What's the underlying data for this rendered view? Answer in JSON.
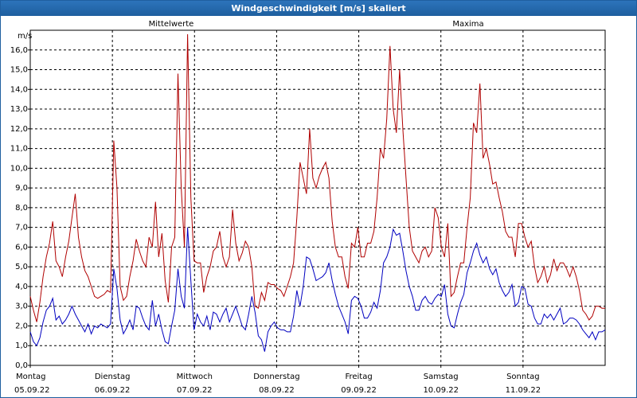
{
  "window": {
    "title": "Windgeschwindigkeit [m/s] skaliert"
  },
  "chart_data": {
    "type": "line",
    "title": "Windgeschwindigkeit [m/s] skaliert",
    "ylabel": "m/s",
    "ylim": [
      0,
      17
    ],
    "xlim": [
      0,
      7
    ],
    "yticks": [
      "0,0",
      "1,0",
      "2,0",
      "3,0",
      "4,0",
      "5,0",
      "6,0",
      "7,0",
      "8,0",
      "9,0",
      "10,0",
      "11,0",
      "12,0",
      "13,0",
      "14,0",
      "15,0",
      "16,0"
    ],
    "xticks": [
      {
        "day": "Montag",
        "date": "05.09.22"
      },
      {
        "day": "Dienstag",
        "date": "06.09.22"
      },
      {
        "day": "Mittwoch",
        "date": "07.09.22"
      },
      {
        "day": "Donnerstag",
        "date": "08.09.22"
      },
      {
        "day": "Freitag",
        "date": "09.09.22"
      },
      {
        "day": "Samstag",
        "date": "10.09.22"
      },
      {
        "day": "Sonntag",
        "date": "11.09.22"
      }
    ],
    "grid": true,
    "series": [
      {
        "name": "Mittelwerte",
        "color": "#0000c0",
        "values": [
          1.7,
          1.2,
          1.0,
          1.4,
          2.2,
          2.8,
          3.0,
          3.4,
          2.3,
          2.5,
          2.1,
          2.3,
          2.6,
          3.0,
          2.6,
          2.3,
          2.0,
          1.7,
          2.1,
          1.6,
          2.0,
          1.9,
          2.1,
          2.0,
          1.9,
          2.1,
          4.9,
          3.9,
          2.3,
          1.6,
          1.9,
          2.3,
          1.8,
          3.0,
          2.9,
          2.4,
          2.0,
          1.8,
          3.3,
          2.0,
          2.6,
          1.8,
          1.2,
          1.1,
          2.0,
          2.8,
          4.9,
          3.5,
          2.9,
          7.0,
          4.3,
          1.8,
          2.6,
          2.2,
          2.0,
          2.5,
          1.8,
          2.7,
          2.6,
          2.2,
          2.6,
          2.9,
          2.2,
          2.6,
          3.0,
          2.5,
          2.0,
          1.8,
          2.6,
          3.5,
          2.7,
          1.5,
          1.3,
          0.7,
          1.7,
          2.0,
          2.2,
          1.9,
          1.8,
          1.8,
          1.7,
          1.7,
          2.5,
          3.8,
          3.0,
          4.0,
          5.5,
          5.4,
          4.9,
          4.3,
          4.4,
          4.5,
          4.7,
          5.2,
          4.3,
          3.6,
          3.0,
          2.6,
          2.2,
          1.6,
          3.3,
          3.5,
          3.4,
          3.0,
          2.4,
          2.4,
          2.7,
          3.2,
          2.9,
          3.8,
          5.2,
          5.5,
          6.0,
          6.9,
          6.6,
          6.7,
          5.8,
          4.8,
          4.0,
          3.5,
          2.8,
          2.8,
          3.3,
          3.5,
          3.2,
          3.1,
          3.4,
          3.6,
          3.5,
          4.1,
          2.6,
          2.0,
          1.9,
          2.6,
          3.2,
          3.6,
          4.7,
          5.2,
          5.8,
          6.2,
          5.6,
          5.2,
          5.5,
          4.9,
          4.6,
          4.9,
          4.2,
          3.8,
          3.5,
          3.7,
          4.1,
          3.0,
          3.2,
          4.0,
          3.9,
          3.1,
          3.0,
          2.4,
          2.1,
          2.1,
          2.6,
          2.4,
          2.6,
          2.3,
          2.6,
          2.9,
          2.1,
          2.2,
          2.4,
          2.4,
          2.3,
          2.1,
          1.8,
          1.6,
          1.4,
          1.7,
          1.3,
          1.7,
          1.7,
          1.8
        ]
      },
      {
        "name": "Maxima",
        "color": "#b00000",
        "values": [
          3.5,
          2.8,
          2.2,
          3.2,
          4.5,
          5.5,
          6.2,
          7.3,
          5.3,
          5.0,
          4.5,
          5.5,
          6.3,
          7.5,
          8.7,
          6.5,
          5.5,
          4.8,
          4.5,
          4.0,
          3.5,
          3.4,
          3.5,
          3.6,
          3.8,
          3.7,
          11.4,
          9.0,
          4.0,
          3.3,
          3.5,
          4.5,
          5.3,
          6.4,
          5.8,
          5.3,
          5.0,
          6.5,
          6.0,
          8.3,
          5.5,
          6.7,
          4.3,
          3.2,
          6.0,
          6.5,
          14.8,
          9.0,
          6.0,
          16.8,
          8.5,
          5.3,
          5.2,
          5.2,
          3.7,
          4.5,
          5.0,
          5.8,
          6.0,
          6.8,
          5.5,
          5.0,
          5.5,
          7.9,
          6.2,
          5.3,
          5.7,
          6.3,
          6.0,
          5.0,
          3.0,
          2.9,
          3.7,
          3.3,
          4.2,
          4.1,
          4.1,
          3.9,
          3.8,
          3.5,
          4.0,
          4.5,
          5.2,
          7.5,
          10.3,
          9.5,
          8.7,
          12.0,
          9.5,
          9.0,
          9.6,
          10.0,
          10.3,
          9.5,
          7.3,
          6.0,
          5.5,
          5.5,
          4.5,
          3.9,
          6.2,
          6.0,
          7.0,
          5.5,
          5.5,
          6.2,
          6.2,
          6.8,
          8.5,
          11.0,
          10.5,
          12.5,
          16.2,
          13.0,
          11.8,
          15.0,
          12.0,
          9.5,
          7.0,
          5.8,
          5.5,
          5.2,
          5.8,
          6.0,
          5.5,
          5.8,
          8.0,
          7.5,
          6.0,
          5.5,
          7.2,
          3.5,
          3.7,
          4.5,
          5.2,
          5.2,
          7.0,
          8.5,
          12.3,
          11.8,
          14.3,
          10.5,
          11.0,
          10.2,
          9.2,
          9.3,
          8.5,
          7.8,
          6.8,
          6.5,
          6.5,
          5.5,
          7.2,
          7.2,
          6.5,
          6.0,
          6.3,
          5.0,
          4.2,
          4.5,
          5.0,
          4.2,
          4.6,
          5.4,
          4.8,
          5.2,
          5.2,
          4.9,
          4.5,
          5.0,
          4.5,
          3.8,
          2.8,
          2.6,
          2.3,
          2.5,
          3.0,
          3.0,
          2.9,
          2.9
        ]
      }
    ]
  }
}
